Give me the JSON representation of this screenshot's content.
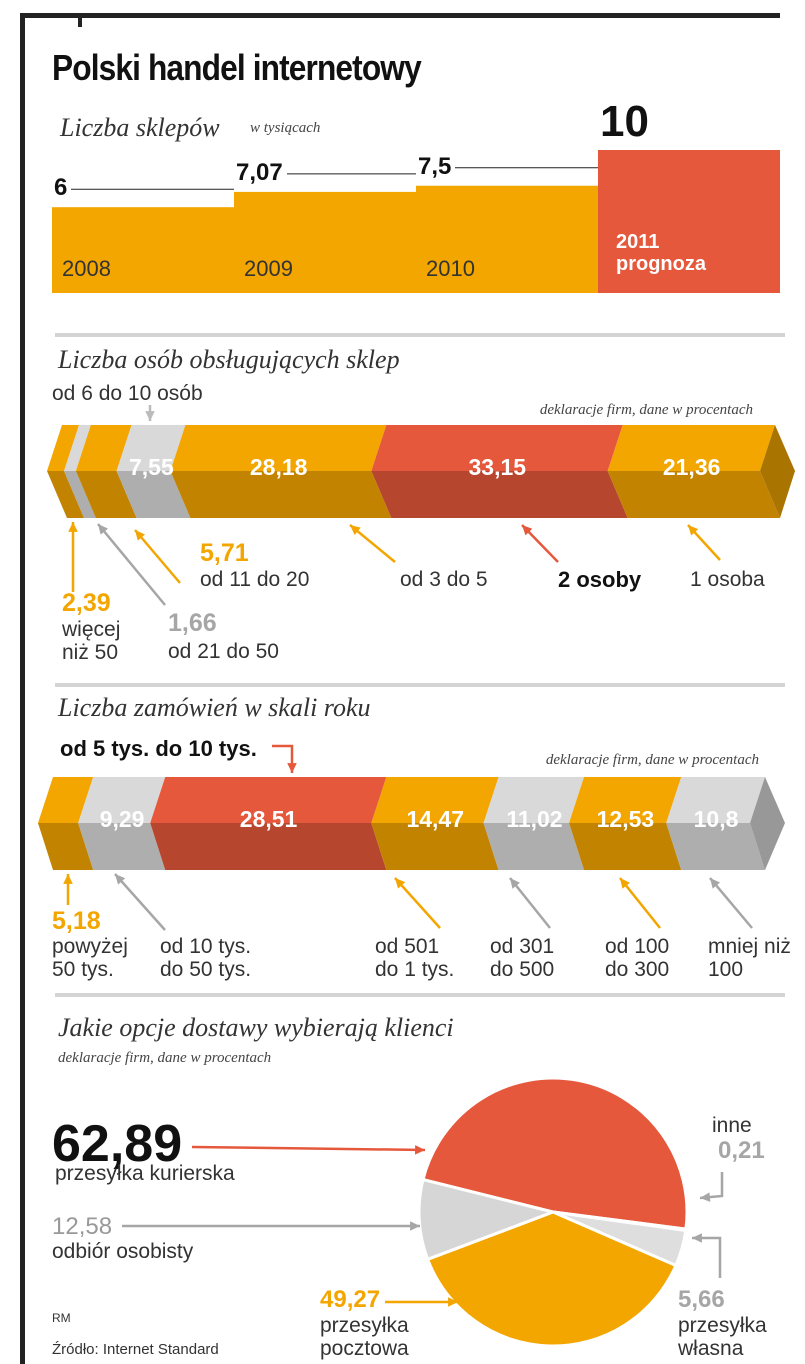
{
  "title": "Polski handel internetowy",
  "chart_data": [
    {
      "type": "bar",
      "title": "Liczba sklepów",
      "subtitle": "w tysiącach",
      "categories": [
        "2008",
        "2009",
        "2010",
        "2011 prognoza"
      ],
      "values": [
        6,
        7.07,
        7.5,
        10
      ],
      "value_labels": [
        "6",
        "7,07",
        "7,5",
        "10"
      ],
      "colors": [
        "#f3a500",
        "#f3a500",
        "#f3a500",
        "#e5583b"
      ]
    },
    {
      "type": "stacked-bar",
      "title": "Liczba osób obsługujących sklep",
      "note": "deklaracje firm, dane w procentach",
      "categories": [
        "więcej niż 50",
        "od 21 do 50",
        "od 11 do 20",
        "od 6 do 10 osób",
        "od 3 do 5",
        "2 osoby",
        "1 osoba"
      ],
      "values": [
        2.39,
        1.66,
        5.71,
        7.55,
        28.18,
        33.15,
        21.36
      ],
      "value_labels": [
        "2,39",
        "1,66",
        "5,71",
        "7,55",
        "28,18",
        "33,15",
        "21,36"
      ],
      "colors": [
        "#f3a500",
        "#d9d9d9",
        "#f3a500",
        "#d9d9d9",
        "#f3a500",
        "#e5583b",
        "#f3a500"
      ]
    },
    {
      "type": "stacked-bar",
      "title": "Liczba zamówień w skali roku",
      "note": "deklaracje firm, dane w procentach",
      "categories": [
        "powyżej 50 tys.",
        "od 10 tys. do 50 tys.",
        "od 5 tys. do 10 tys.",
        "od 501 do 1 tys.",
        "od 301 do 500",
        "od 100 do 300",
        "mniej niż 100"
      ],
      "values": [
        5.18,
        9.29,
        28.51,
        14.47,
        11.02,
        12.53,
        10.8
      ],
      "value_labels": [
        "5,18",
        "9,29",
        "28,51",
        "14,47",
        "11,02",
        "12,53",
        "10,8"
      ],
      "colors": [
        "#f3a500",
        "#d9d9d9",
        "#e5583b",
        "#f3a500",
        "#d9d9d9",
        "#f3a500",
        "#d9d9d9"
      ]
    },
    {
      "type": "pie",
      "title": "Jakie opcje dostawy wybierają klienci",
      "note": "deklaracje firm, dane w procentach",
      "categories": [
        "przesyłka kurierska",
        "inne",
        "przesyłka własna",
        "przesyłka pocztowa",
        "odbiór osobisty"
      ],
      "values": [
        62.89,
        0.21,
        5.66,
        49.27,
        12.58
      ],
      "value_labels": [
        "62,89",
        "0,21",
        "5,66",
        "49,27",
        "12,58"
      ],
      "colors": [
        "#e5583b",
        "#ffffff",
        "#dedede",
        "#f3a500",
        "#d6d6d6"
      ]
    }
  ],
  "footer": {
    "author": "RM",
    "source": "Źródło: Internet Standard"
  }
}
